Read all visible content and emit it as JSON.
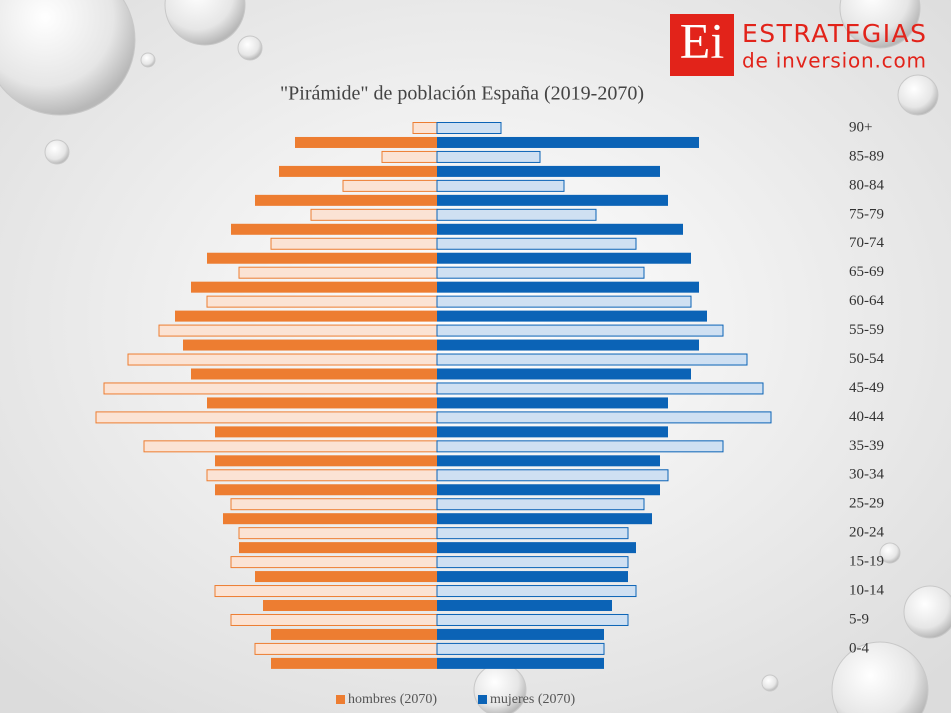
{
  "chart_data": {
    "type": "pyramid",
    "title": "\"Pirámide\" de población España (2019-2070)",
    "logo": {
      "mark": "Ei",
      "line1": "ESTRATEGIAS",
      "line2": "de inversion.com"
    },
    "categories": [
      "90+",
      "85-89",
      "80-84",
      "75-79",
      "70-74",
      "65-69",
      "60-64",
      "55-59",
      "50-54",
      "45-49",
      "40-44",
      "35-39",
      "30-34",
      "25-29",
      "20-24",
      "15-19",
      "10-14",
      "5-9",
      "0-4"
    ],
    "series": [
      {
        "name": "hombres (2070)",
        "color": "#ed7d31",
        "values": [
          142,
          158,
          182,
          206,
          230,
          246,
          262,
          254,
          246,
          230,
          222,
          222,
          222,
          214,
          198,
          182,
          174,
          166,
          166
        ]
      },
      {
        "name": "mujeres (2070)",
        "color": "#0b63b6",
        "values": [
          262,
          223,
          231,
          246,
          254,
          262,
          270,
          262,
          254,
          231,
          231,
          223,
          223,
          215,
          199,
          191,
          175,
          167,
          167
        ]
      },
      {
        "color": "#fbe3d4",
        "values": [
          24,
          55,
          94,
          126,
          166,
          198,
          230,
          278,
          309,
          333,
          341,
          293,
          230,
          206,
          198,
          206,
          222,
          206,
          182
        ]
      },
      {
        "color": "#cfe0f2",
        "values": [
          64,
          103,
          127,
          159,
          199,
          207,
          254,
          286,
          310,
          326,
          334,
          286,
          231,
          207,
          191,
          191,
          199,
          191,
          167
        ]
      }
    ]
  }
}
